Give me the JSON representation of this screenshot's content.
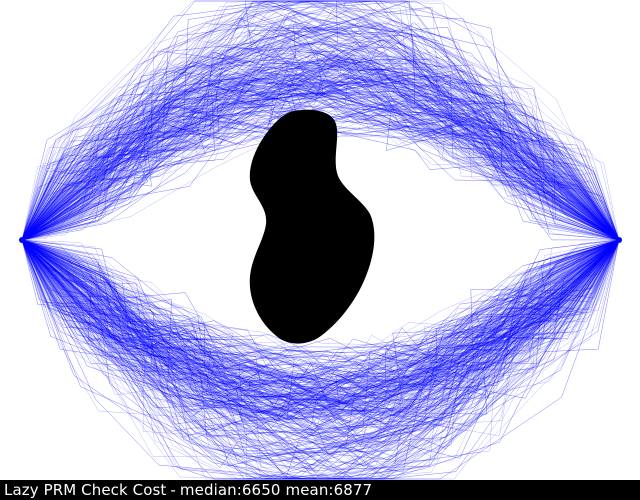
{
  "status": {
    "title": "Lazy PRM Check Cost",
    "separator": "-",
    "median_label": "median:6650",
    "mean_label": "mean:6877"
  },
  "scene": {
    "background_color": "#ffffff",
    "obstacle_color": "#000000",
    "path_color": "#0000ff",
    "start_icon": "start-node-icon",
    "goal_icon": "goal-node-icon"
  }
}
